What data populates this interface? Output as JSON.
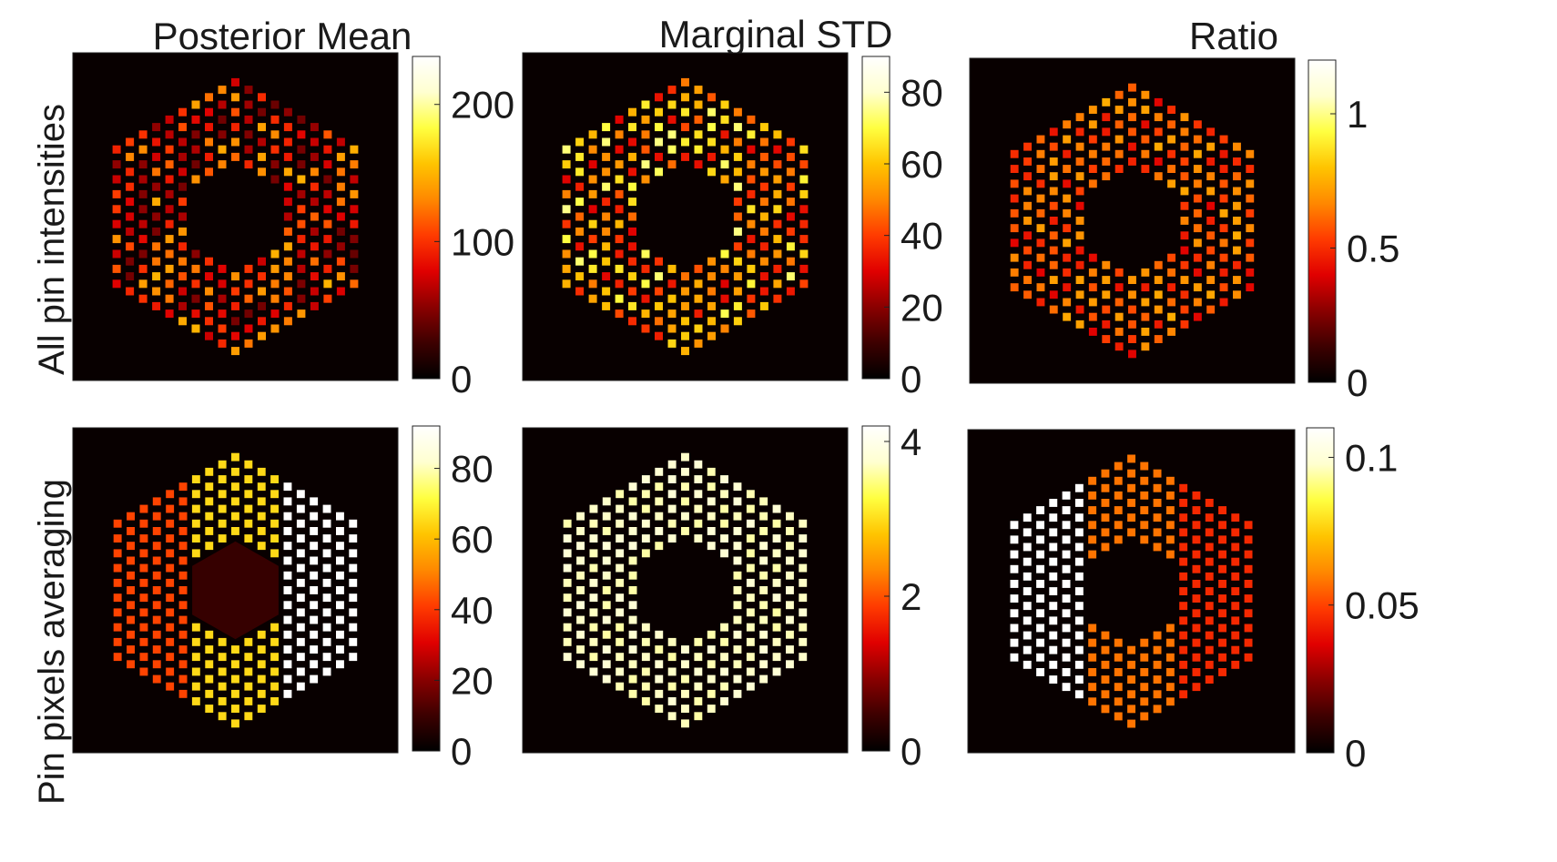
{
  "figure": {
    "column_titles": [
      "Posterior Mean",
      "Marginal STD",
      "Ratio"
    ],
    "row_labels": [
      "All pin intensities",
      "Pin pixels averaging"
    ],
    "colormap": [
      "#000000",
      "#3d0000",
      "#8a0000",
      "#e00000",
      "#ff3b00",
      "#ff8800",
      "#ffc400",
      "#ffff40",
      "#ffffd0",
      "#ffffff"
    ]
  },
  "chart_data": [
    {
      "type": "heatmap",
      "title": "Posterior Mean",
      "row": "All pin intensities",
      "pattern": "per-pin",
      "colorbar": {
        "min": 0,
        "max": 235,
        "ticks": [
          0,
          100,
          200
        ],
        "tick_labels": [
          "0",
          "100",
          "200"
        ]
      },
      "pin_value_range": [
        40,
        150
      ]
    },
    {
      "type": "heatmap",
      "title": "Marginal STD",
      "row": "All pin intensities",
      "pattern": "per-pin",
      "colorbar": {
        "min": 0,
        "max": 90,
        "ticks": [
          0,
          20,
          40,
          60,
          80
        ],
        "tick_labels": [
          "0",
          "20",
          "40",
          "60",
          "80"
        ]
      },
      "pin_value_range": [
        30,
        75
      ]
    },
    {
      "type": "heatmap",
      "title": "Ratio",
      "row": "All pin intensities",
      "pattern": "per-pin",
      "colorbar": {
        "min": 0,
        "max": 1.2,
        "ticks": [
          0,
          0.5,
          1
        ],
        "tick_labels": [
          "0",
          "0.5",
          "1"
        ]
      },
      "pin_value_range": [
        0.4,
        0.75
      ]
    },
    {
      "type": "heatmap",
      "title": "Posterior Mean",
      "row": "Pin pixels averaging",
      "pattern": "column-bands",
      "colorbar": {
        "min": 0,
        "max": 92,
        "ticks": [
          0,
          20,
          40,
          60,
          80
        ],
        "tick_labels": [
          "0",
          "20",
          "40",
          "60",
          "80"
        ]
      },
      "band_values": {
        "left": 42,
        "center": 65,
        "right": 92,
        "inner_hole": 10
      }
    },
    {
      "type": "heatmap",
      "title": "Marginal STD",
      "row": "Pin pixels averaging",
      "pattern": "uniform",
      "colorbar": {
        "min": 0,
        "max": 4.2,
        "ticks": [
          0,
          2,
          4
        ],
        "tick_labels": [
          "0",
          "2",
          "4"
        ]
      },
      "band_values": {
        "all": 3.7
      }
    },
    {
      "type": "heatmap",
      "title": "Ratio",
      "row": "Pin pixels averaging",
      "pattern": "column-bands",
      "colorbar": {
        "min": 0,
        "max": 0.11,
        "ticks": [
          0,
          0.05,
          0.1
        ],
        "tick_labels": [
          "0",
          "0.05",
          "0.1"
        ]
      },
      "band_values": {
        "left": 0.11,
        "center": 0.058,
        "right": 0.045
      }
    }
  ]
}
